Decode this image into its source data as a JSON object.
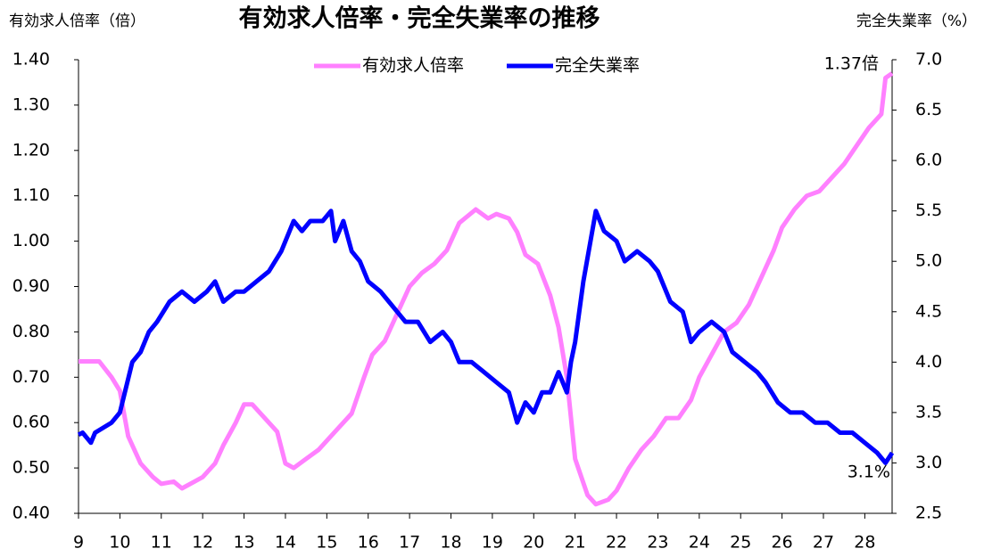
{
  "chart_data": {
    "type": "line",
    "title": "有効求人倍率・完全失業率の推移",
    "y_axis_label": "有効求人倍率（倍）",
    "y2_axis_label": "完全失業率（%）",
    "xlim": [
      9,
      28.66
    ],
    "xticks": [
      9,
      10,
      11,
      12,
      13,
      14,
      15,
      16,
      17,
      18,
      19,
      20,
      21,
      22,
      23,
      24,
      25,
      26,
      27,
      28
    ],
    "ylim": [
      0.4,
      1.4
    ],
    "yticks": [
      {
        "value": 0.4,
        "label": "0.40"
      },
      {
        "value": 0.5,
        "label": "0.50"
      },
      {
        "value": 0.6,
        "label": "0.60"
      },
      {
        "value": 0.7,
        "label": "0.70"
      },
      {
        "value": 0.8,
        "label": "0.80"
      },
      {
        "value": 0.9,
        "label": "0.90"
      },
      {
        "value": 1.0,
        "label": "1.00"
      },
      {
        "value": 1.1,
        "label": "1.10"
      },
      {
        "value": 1.2,
        "label": "1.20"
      },
      {
        "value": 1.3,
        "label": "1.30"
      },
      {
        "value": 1.4,
        "label": "1.40"
      }
    ],
    "y2lim": [
      2.5,
      7.0
    ],
    "y2ticks": [
      {
        "value": 2.5,
        "label": "2.5"
      },
      {
        "value": 3.0,
        "label": "3.0"
      },
      {
        "value": 3.5,
        "label": "3.5"
      },
      {
        "value": 4.0,
        "label": "4.0"
      },
      {
        "value": 4.5,
        "label": "4.5"
      },
      {
        "value": 5.0,
        "label": "5.0"
      },
      {
        "value": 5.5,
        "label": "5.5"
      },
      {
        "value": 6.0,
        "label": "6.0"
      },
      {
        "value": 6.5,
        "label": "6.5"
      },
      {
        "value": 7.0,
        "label": "7.0"
      }
    ],
    "legend": "top",
    "series": [
      {
        "name": "有効求人倍率",
        "color": "#ff80ff",
        "axis": "y",
        "x": [
          9.0,
          9.5,
          9.8,
          10.0,
          10.2,
          10.5,
          10.8,
          11.0,
          11.3,
          11.5,
          11.8,
          12.0,
          12.3,
          12.5,
          12.8,
          13.0,
          13.2,
          13.5,
          13.8,
          14.0,
          14.2,
          14.5,
          14.8,
          15.0,
          15.3,
          15.6,
          15.9,
          16.1,
          16.4,
          16.7,
          17.0,
          17.3,
          17.6,
          17.9,
          18.2,
          18.6,
          18.9,
          19.1,
          19.4,
          19.6,
          19.8,
          20.1,
          20.4,
          20.6,
          20.8,
          21.0,
          21.3,
          21.5,
          21.8,
          22.0,
          22.3,
          22.6,
          22.9,
          23.2,
          23.5,
          23.8,
          24.0,
          24.3,
          24.6,
          24.9,
          25.2,
          25.5,
          25.8,
          26.0,
          26.3,
          26.6,
          26.9,
          27.2,
          27.5,
          27.8,
          28.1,
          28.4,
          28.5,
          28.66
        ],
        "values": [
          0.735,
          0.735,
          0.7,
          0.67,
          0.57,
          0.51,
          0.48,
          0.465,
          0.47,
          0.455,
          0.47,
          0.48,
          0.51,
          0.55,
          0.6,
          0.64,
          0.64,
          0.61,
          0.58,
          0.51,
          0.5,
          0.52,
          0.54,
          0.56,
          0.59,
          0.62,
          0.7,
          0.75,
          0.78,
          0.84,
          0.9,
          0.93,
          0.95,
          0.98,
          1.04,
          1.07,
          1.05,
          1.06,
          1.05,
          1.02,
          0.97,
          0.95,
          0.88,
          0.81,
          0.7,
          0.52,
          0.44,
          0.42,
          0.43,
          0.45,
          0.5,
          0.54,
          0.57,
          0.61,
          0.61,
          0.65,
          0.7,
          0.75,
          0.8,
          0.82,
          0.86,
          0.92,
          0.98,
          1.03,
          1.07,
          1.1,
          1.11,
          1.14,
          1.17,
          1.21,
          1.25,
          1.28,
          1.36,
          1.37
        ]
      },
      {
        "name": "完全失業率",
        "color": "#0000ff",
        "axis": "y2",
        "x": [
          9.0,
          9.1,
          9.3,
          9.4,
          9.8,
          10.0,
          10.3,
          10.5,
          10.7,
          10.9,
          11.2,
          11.5,
          11.8,
          12.1,
          12.3,
          12.5,
          12.8,
          13.0,
          13.3,
          13.6,
          13.9,
          14.2,
          14.4,
          14.6,
          14.9,
          15.1,
          15.2,
          15.4,
          15.6,
          15.8,
          16.0,
          16.3,
          16.5,
          16.7,
          16.9,
          17.2,
          17.5,
          17.8,
          18.0,
          18.2,
          18.5,
          18.8,
          19.1,
          19.4,
          19.6,
          19.8,
          20.0,
          20.2,
          20.4,
          20.6,
          20.8,
          20.9,
          21.0,
          21.2,
          21.5,
          21.7,
          22.0,
          22.2,
          22.5,
          22.8,
          23.0,
          23.3,
          23.6,
          23.8,
          24.0,
          24.3,
          24.6,
          24.8,
          25.1,
          25.4,
          25.6,
          25.9,
          26.2,
          26.5,
          26.8,
          27.1,
          27.4,
          27.7,
          28.0,
          28.3,
          28.5,
          28.66
        ],
        "values": [
          3.28,
          3.3,
          3.2,
          3.3,
          3.4,
          3.5,
          4.0,
          4.1,
          4.3,
          4.4,
          4.6,
          4.7,
          4.6,
          4.7,
          4.8,
          4.6,
          4.7,
          4.7,
          4.8,
          4.9,
          5.1,
          5.4,
          5.3,
          5.4,
          5.4,
          5.5,
          5.2,
          5.4,
          5.1,
          5.0,
          4.8,
          4.7,
          4.6,
          4.5,
          4.4,
          4.4,
          4.2,
          4.3,
          4.2,
          4.0,
          4.0,
          3.9,
          3.8,
          3.7,
          3.4,
          3.6,
          3.5,
          3.7,
          3.7,
          3.9,
          3.7,
          4.0,
          4.2,
          4.8,
          5.5,
          5.3,
          5.2,
          5.0,
          5.1,
          5.0,
          4.9,
          4.6,
          4.5,
          4.2,
          4.3,
          4.4,
          4.3,
          4.1,
          4.0,
          3.9,
          3.8,
          3.6,
          3.5,
          3.5,
          3.4,
          3.4,
          3.3,
          3.3,
          3.2,
          3.1,
          3.0,
          3.1
        ]
      }
    ],
    "annotations": [
      "1.37倍",
      "3.1%"
    ]
  }
}
